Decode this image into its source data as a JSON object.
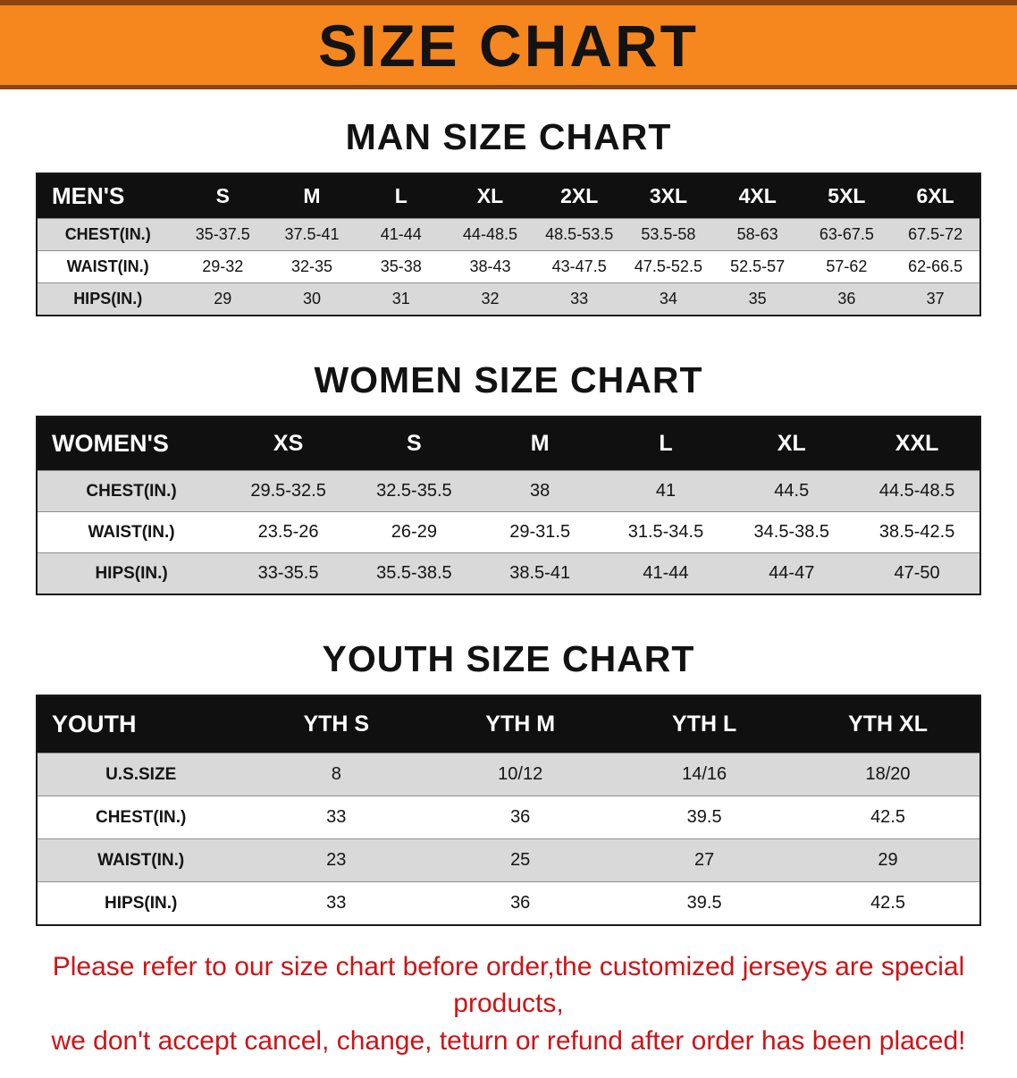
{
  "banner": {
    "title": "SIZE CHART",
    "bg_color": "#f6871f"
  },
  "colors": {
    "table_header": "#101010",
    "row_shade": "#d9d9d9",
    "disclaimer_red": "#d01215"
  },
  "sections": [
    {
      "heading": "MAN SIZE CHART",
      "table": {
        "header": [
          "MEN'S",
          "S",
          "M",
          "L",
          "XL",
          "2XL",
          "3XL",
          "4XL",
          "5XL",
          "6XL"
        ],
        "rows": [
          [
            "CHEST(IN.)",
            "35-37.5",
            "37.5-41",
            "41-44",
            "44-48.5",
            "48.5-53.5",
            "53.5-58",
            "58-63",
            "63-67.5",
            "67.5-72"
          ],
          [
            "WAIST(IN.)",
            "29-32",
            "32-35",
            "35-38",
            "38-43",
            "43-47.5",
            "47.5-52.5",
            "52.5-57",
            "57-62",
            "62-66.5"
          ],
          [
            "HIPS(IN.)",
            "29",
            "30",
            "31",
            "32",
            "33",
            "34",
            "35",
            "36",
            "37"
          ]
        ]
      }
    },
    {
      "heading": "WOMEN SIZE CHART",
      "table": {
        "header": [
          "WOMEN'S",
          "XS",
          "S",
          "M",
          "L",
          "XL",
          "XXL"
        ],
        "rows": [
          [
            "CHEST(IN.)",
            "29.5-32.5",
            "32.5-35.5",
            "38",
            "41",
            "44.5",
            "44.5-48.5"
          ],
          [
            "WAIST(IN.)",
            "23.5-26",
            "26-29",
            "29-31.5",
            "31.5-34.5",
            "34.5-38.5",
            "38.5-42.5"
          ],
          [
            "HIPS(IN.)",
            "33-35.5",
            "35.5-38.5",
            "38.5-41",
            "41-44",
            "44-47",
            "47-50"
          ]
        ]
      }
    },
    {
      "heading": "YOUTH SIZE CHART",
      "table": {
        "header": [
          "YOUTH",
          "YTH S",
          "YTH M",
          "YTH L",
          "YTH XL"
        ],
        "rows": [
          [
            "U.S.SIZE",
            "8",
            "10/12",
            "14/16",
            "18/20"
          ],
          [
            "CHEST(IN.)",
            "33",
            "36",
            "39.5",
            "42.5"
          ],
          [
            "WAIST(IN.)",
            "23",
            "25",
            "27",
            "29"
          ],
          [
            "HIPS(IN.)",
            "33",
            "36",
            "39.5",
            "42.5"
          ]
        ]
      }
    }
  ],
  "disclaimer": {
    "line1": "Please refer to our size chart before order,the customized jerseys are special products,",
    "line2": "we don't accept cancel, change, teturn or refund after order has been placed!"
  }
}
